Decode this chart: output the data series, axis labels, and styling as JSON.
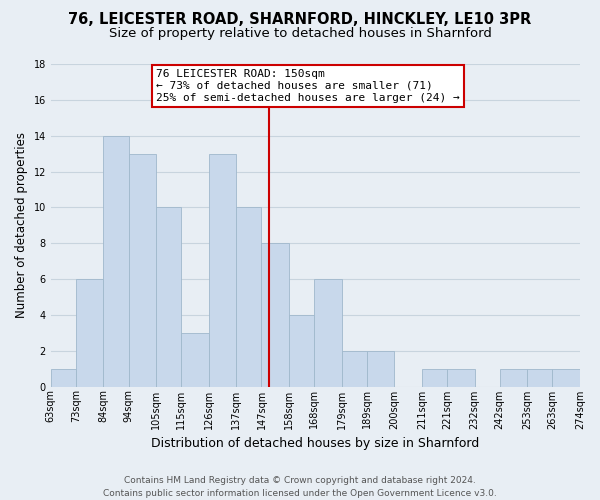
{
  "title": "76, LEICESTER ROAD, SHARNFORD, HINCKLEY, LE10 3PR",
  "subtitle": "Size of property relative to detached houses in Sharnford",
  "xlabel": "Distribution of detached houses by size in Sharnford",
  "ylabel": "Number of detached properties",
  "bin_edges": [
    63,
    73,
    84,
    94,
    105,
    115,
    126,
    137,
    147,
    158,
    168,
    179,
    189,
    200,
    211,
    221,
    232,
    242,
    253,
    263,
    274
  ],
  "bin_labels": [
    "63sqm",
    "73sqm",
    "84sqm",
    "94sqm",
    "105sqm",
    "115sqm",
    "126sqm",
    "137sqm",
    "147sqm",
    "158sqm",
    "168sqm",
    "179sqm",
    "189sqm",
    "200sqm",
    "211sqm",
    "221sqm",
    "232sqm",
    "242sqm",
    "253sqm",
    "263sqm",
    "274sqm"
  ],
  "counts": [
    1,
    6,
    14,
    13,
    10,
    3,
    13,
    10,
    8,
    4,
    6,
    2,
    2,
    0,
    1,
    1,
    0,
    1,
    1,
    1
  ],
  "bar_color": "#c8d8eb",
  "bar_edge_color": "#a0b8cc",
  "bar_linewidth": 0.6,
  "property_value": 150,
  "vline_color": "#cc0000",
  "annotation_line1": "76 LEICESTER ROAD: 150sqm",
  "annotation_line2": "← 73% of detached houses are smaller (71)",
  "annotation_line3": "25% of semi-detached houses are larger (24) →",
  "annotation_box_edgecolor": "#cc0000",
  "annotation_box_facecolor": "#ffffff",
  "ylim": [
    0,
    18
  ],
  "yticks": [
    0,
    2,
    4,
    6,
    8,
    10,
    12,
    14,
    16,
    18
  ],
  "background_color": "#e8eef4",
  "grid_color": "#c8d4de",
  "footer_text": "Contains HM Land Registry data © Crown copyright and database right 2024.\nContains public sector information licensed under the Open Government Licence v3.0.",
  "title_fontsize": 10.5,
  "subtitle_fontsize": 9.5,
  "xlabel_fontsize": 9,
  "ylabel_fontsize": 8.5,
  "tick_fontsize": 7,
  "annotation_fontsize": 8,
  "footer_fontsize": 6.5
}
